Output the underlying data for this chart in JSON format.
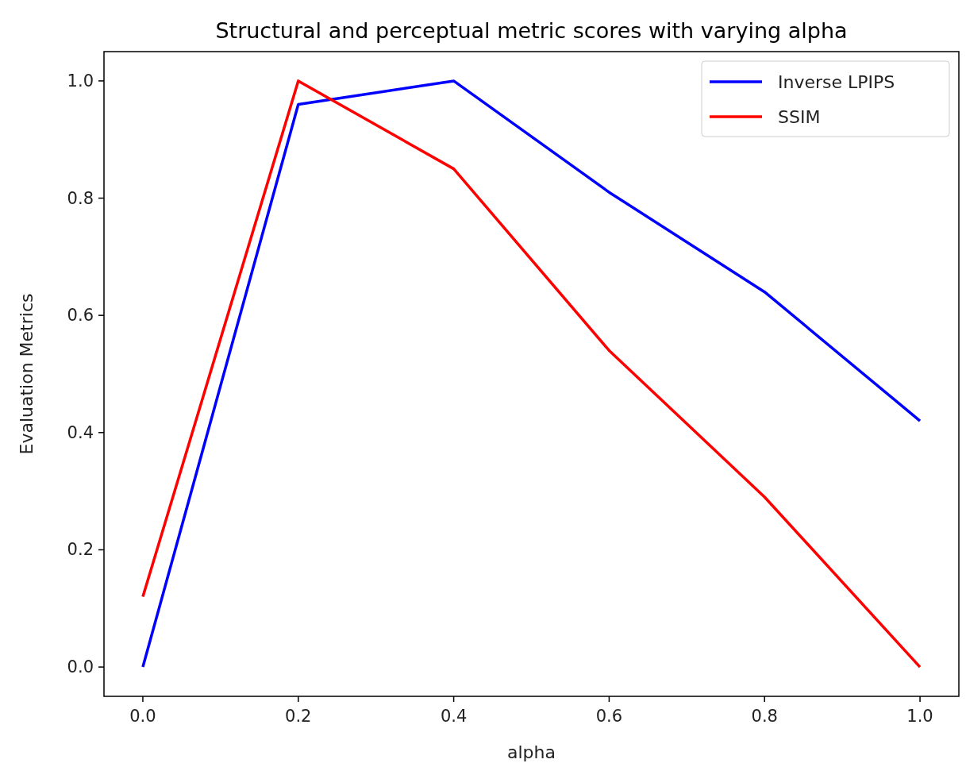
{
  "chart_data": {
    "type": "line",
    "title": "Structural and perceptual metric scores with varying alpha",
    "xlabel": "alpha",
    "ylabel": "Evaluation Metrics",
    "x": [
      0,
      0.2,
      0.4,
      0.6,
      0.8,
      1.0
    ],
    "series": [
      {
        "name": "Inverse LPIPS",
        "color": "#0000ff",
        "values": [
          0,
          0.96,
          1.0,
          0.81,
          0.64,
          0.42
        ]
      },
      {
        "name": "SSIM",
        "color": "#ff0000",
        "values": [
          0.12,
          1.0,
          0.85,
          0.54,
          0.29,
          0
        ]
      }
    ],
    "xlim": [
      -0.05,
      1.05
    ],
    "ylim": [
      -0.05,
      1.05
    ],
    "xticks": [
      {
        "value": 0,
        "label": "0.0"
      },
      0.2,
      0.4,
      0.6,
      0.8,
      {
        "value": 1,
        "label": "1.0"
      }
    ],
    "yticks": [
      {
        "value": 0,
        "label": "0.0"
      },
      0.2,
      0.4,
      0.6,
      0.8,
      {
        "value": 1,
        "label": "1.0"
      }
    ],
    "legend": "top right",
    "grid": false,
    "marker": "none",
    "line_style": "solid"
  }
}
